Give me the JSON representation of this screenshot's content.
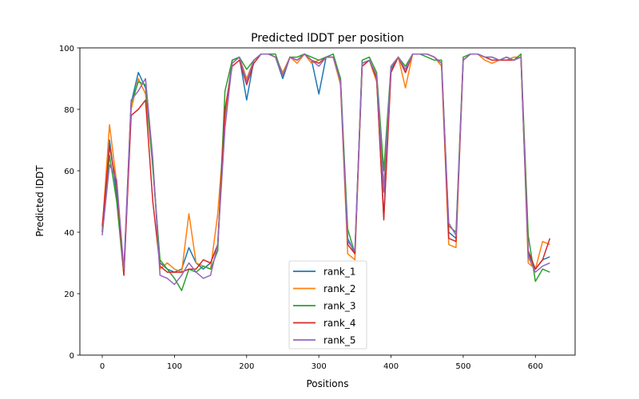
{
  "chart_data": {
    "type": "line",
    "title": "Predicted lDDT per position",
    "xlabel": "Positions",
    "ylabel": "Predicted lDDT",
    "xlim": [
      -31,
      655
    ],
    "ylim": [
      0,
      100
    ],
    "xticks": [
      0,
      100,
      200,
      300,
      400,
      500,
      600
    ],
    "yticks": [
      0,
      20,
      40,
      60,
      80,
      100
    ],
    "grid": false,
    "legend_placement": "lower-center",
    "x": [
      0,
      10,
      20,
      30,
      40,
      50,
      60,
      70,
      80,
      90,
      100,
      110,
      120,
      130,
      140,
      150,
      160,
      170,
      180,
      190,
      200,
      210,
      220,
      230,
      240,
      250,
      260,
      270,
      280,
      290,
      300,
      310,
      320,
      330,
      340,
      350,
      360,
      370,
      380,
      390,
      400,
      410,
      420,
      430,
      440,
      450,
      460,
      470,
      480,
      490,
      500,
      510,
      520,
      530,
      540,
      550,
      560,
      570,
      580,
      590,
      600,
      610,
      620
    ],
    "series": [
      {
        "name": "rank_1",
        "color": "#1f77b4",
        "values": [
          40,
          70,
          52,
          27,
          82,
          92,
          87,
          62,
          30,
          28,
          27,
          28,
          35,
          30,
          28,
          30,
          36,
          78,
          96,
          97,
          83,
          96,
          98,
          98,
          97,
          90,
          97,
          96,
          98,
          96,
          85,
          97,
          97,
          90,
          38,
          33,
          95,
          96,
          90,
          45,
          93,
          97,
          92,
          98,
          98,
          98,
          97,
          95,
          40,
          38,
          96,
          98,
          98,
          97,
          97,
          96,
          97,
          96,
          97,
          33,
          28,
          31,
          32
        ]
      },
      {
        "name": "rank_2",
        "color": "#ff7f0e",
        "values": [
          41,
          75,
          56,
          27,
          80,
          90,
          85,
          62,
          28,
          30,
          28,
          27,
          46,
          30,
          29,
          28,
          46,
          76,
          95,
          97,
          90,
          96,
          98,
          98,
          97,
          92,
          97,
          95,
          98,
          95,
          96,
          97,
          97,
          88,
          33,
          31,
          94,
          96,
          89,
          55,
          92,
          97,
          87,
          98,
          98,
          98,
          97,
          94,
          36,
          35,
          96,
          98,
          98,
          96,
          95,
          96,
          96,
          97,
          97,
          30,
          28,
          37,
          36
        ]
      },
      {
        "name": "rank_3",
        "color": "#2ca02c",
        "values": [
          40,
          65,
          50,
          26,
          82,
          89,
          88,
          61,
          31,
          28,
          25,
          21,
          28,
          27,
          29,
          28,
          34,
          86,
          96,
          97,
          93,
          96,
          98,
          98,
          98,
          91,
          97,
          97,
          98,
          97,
          96,
          97,
          98,
          90,
          41,
          33,
          96,
          97,
          92,
          60,
          94,
          97,
          94,
          98,
          98,
          97,
          96,
          96,
          42,
          40,
          97,
          98,
          98,
          97,
          97,
          96,
          97,
          96,
          98,
          39,
          24,
          28,
          27
        ]
      },
      {
        "name": "rank_4",
        "color": "#d62728",
        "values": [
          42,
          68,
          55,
          26,
          78,
          80,
          83,
          50,
          29,
          27,
          27,
          27,
          28,
          28,
          31,
          30,
          36,
          80,
          94,
          96,
          88,
          95,
          98,
          98,
          97,
          91,
          97,
          96,
          98,
          96,
          95,
          97,
          97,
          89,
          36,
          33,
          94,
          96,
          90,
          44,
          92,
          97,
          92,
          98,
          98,
          98,
          97,
          95,
          38,
          37,
          96,
          98,
          98,
          97,
          96,
          96,
          96,
          96,
          97,
          34,
          28,
          31,
          38
        ]
      },
      {
        "name": "rank_5",
        "color": "#9467bd",
        "values": [
          39,
          62,
          57,
          28,
          83,
          86,
          90,
          64,
          26,
          25,
          23,
          26,
          30,
          27,
          25,
          26,
          36,
          74,
          95,
          97,
          89,
          96,
          98,
          98,
          97,
          91,
          97,
          96,
          98,
          96,
          94,
          97,
          97,
          89,
          37,
          34,
          95,
          96,
          91,
          53,
          94,
          97,
          93,
          98,
          98,
          98,
          97,
          95,
          43,
          39,
          96,
          98,
          98,
          97,
          97,
          96,
          97,
          96,
          97,
          32,
          27,
          29,
          30
        ]
      }
    ]
  }
}
